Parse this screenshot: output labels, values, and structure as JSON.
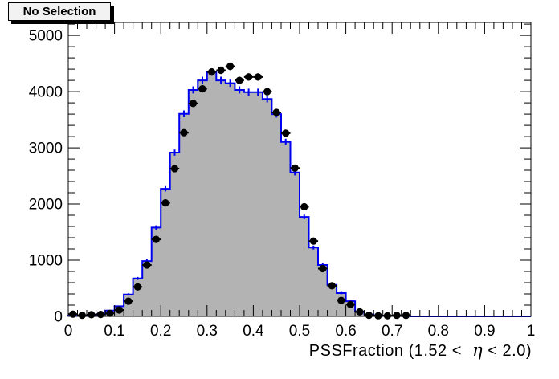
{
  "chart_data": {
    "type": "bar",
    "subtype": "step-histogram-with-data-points",
    "title": "No Selection",
    "xlabel": "PSSFraction (1.52 <  η < 2.0)",
    "xlabel_parts": {
      "prefix": "PSSFraction (1.52 < ",
      "eta": " η",
      "suffix": " < 2.0)"
    },
    "ylabel": "",
    "xlim": [
      0,
      1
    ],
    "ylim": [
      0,
      5230
    ],
    "grid": false,
    "legend": false,
    "x_tick_labels": [
      "0",
      "0.1",
      "0.2",
      "0.3",
      "0.4",
      "0.5",
      "0.6",
      "0.7",
      "0.8",
      "0.9",
      "1"
    ],
    "x_tick_values": [
      0,
      0.1,
      0.2,
      0.3,
      0.4,
      0.5,
      0.6,
      0.7,
      0.8,
      0.9,
      1
    ],
    "y_tick_labels": [
      "0",
      "1000",
      "2000",
      "3000",
      "4000",
      "5000"
    ],
    "y_tick_values": [
      0,
      1000,
      2000,
      3000,
      4000,
      5000
    ],
    "x_minor_step": 0.02,
    "y_minor_step": 200,
    "bin_width": 0.02,
    "bin_centers": [
      0.01,
      0.03,
      0.05,
      0.07,
      0.09,
      0.11,
      0.13,
      0.15,
      0.17,
      0.19,
      0.21,
      0.23,
      0.25,
      0.27,
      0.29,
      0.31,
      0.33,
      0.35,
      0.37,
      0.39,
      0.41,
      0.43,
      0.45,
      0.47,
      0.49,
      0.51,
      0.53,
      0.55,
      0.57,
      0.59,
      0.61,
      0.63,
      0.65,
      0.67,
      0.69,
      0.71,
      0.73
    ],
    "series": [
      {
        "name": "filled-histogram",
        "style": "step-filled",
        "fill_color": "#b3b3b3",
        "line_color": "#0000f0",
        "values": [
          10,
          12,
          18,
          40,
          105,
          180,
          390,
          675,
          985,
          1580,
          2270,
          2915,
          3605,
          4030,
          4200,
          4350,
          4200,
          4150,
          4030,
          3990,
          3990,
          3870,
          3600,
          3105,
          2560,
          1770,
          1225,
          915,
          560,
          415,
          270,
          90,
          35,
          15,
          10,
          8,
          6
        ]
      },
      {
        "name": "data-points",
        "style": "points-with-errors",
        "marker": "filled-circle",
        "color": "#000000",
        "values": [
          40,
          20,
          30,
          35,
          55,
          115,
          270,
          525,
          915,
          1370,
          2020,
          2630,
          3270,
          3790,
          4050,
          4350,
          4380,
          4450,
          4200,
          4260,
          4260,
          4000,
          3630,
          3260,
          2640,
          1950,
          1340,
          850,
          545,
          285,
          210,
          80,
          20,
          12,
          12,
          18,
          18
        ]
      }
    ],
    "colors": {
      "frame": "#000000",
      "background": "#ffffff",
      "title_box_bg": "#f2f2f2",
      "title_box_shadow": "#000000"
    }
  }
}
